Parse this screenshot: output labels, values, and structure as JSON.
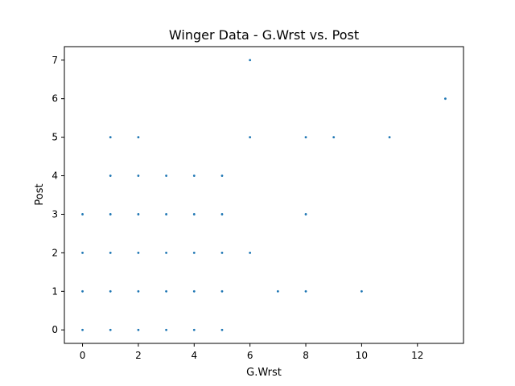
{
  "chart_data": {
    "type": "scatter",
    "title": "Winger Data - G.Wrst vs. Post",
    "xlabel": "G.Wrst",
    "ylabel": "Post",
    "xlim": [
      -0.65,
      13.65
    ],
    "ylim": [
      -0.35,
      7.35
    ],
    "xticks": [
      0,
      2,
      4,
      6,
      8,
      10,
      12
    ],
    "yticks": [
      0,
      1,
      2,
      3,
      4,
      5,
      6,
      7
    ],
    "grid": false,
    "marker_color": "#1f77b4",
    "points": [
      {
        "x": 0,
        "y": 0
      },
      {
        "x": 1,
        "y": 0
      },
      {
        "x": 2,
        "y": 0
      },
      {
        "x": 3,
        "y": 0
      },
      {
        "x": 4,
        "y": 0
      },
      {
        "x": 5,
        "y": 0
      },
      {
        "x": 0,
        "y": 1
      },
      {
        "x": 1,
        "y": 1
      },
      {
        "x": 2,
        "y": 1
      },
      {
        "x": 3,
        "y": 1
      },
      {
        "x": 4,
        "y": 1
      },
      {
        "x": 5,
        "y": 1
      },
      {
        "x": 7,
        "y": 1
      },
      {
        "x": 8,
        "y": 1
      },
      {
        "x": 10,
        "y": 1
      },
      {
        "x": 0,
        "y": 2
      },
      {
        "x": 1,
        "y": 2
      },
      {
        "x": 2,
        "y": 2
      },
      {
        "x": 3,
        "y": 2
      },
      {
        "x": 4,
        "y": 2
      },
      {
        "x": 5,
        "y": 2
      },
      {
        "x": 6,
        "y": 2
      },
      {
        "x": 0,
        "y": 3
      },
      {
        "x": 1,
        "y": 3
      },
      {
        "x": 2,
        "y": 3
      },
      {
        "x": 3,
        "y": 3
      },
      {
        "x": 4,
        "y": 3
      },
      {
        "x": 5,
        "y": 3
      },
      {
        "x": 8,
        "y": 3
      },
      {
        "x": 1,
        "y": 4
      },
      {
        "x": 2,
        "y": 4
      },
      {
        "x": 3,
        "y": 4
      },
      {
        "x": 4,
        "y": 4
      },
      {
        "x": 5,
        "y": 4
      },
      {
        "x": 1,
        "y": 5
      },
      {
        "x": 2,
        "y": 5
      },
      {
        "x": 6,
        "y": 5
      },
      {
        "x": 8,
        "y": 5
      },
      {
        "x": 9,
        "y": 5
      },
      {
        "x": 11,
        "y": 5
      },
      {
        "x": 13,
        "y": 6
      },
      {
        "x": 6,
        "y": 7
      }
    ]
  }
}
